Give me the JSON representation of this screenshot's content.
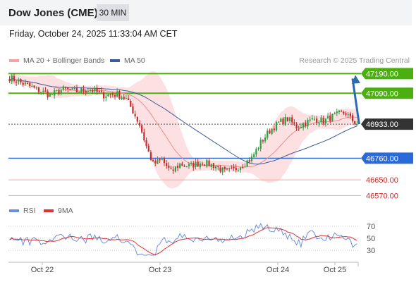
{
  "header": {
    "title": "Dow Jones (CME)",
    "timeframe": "30 MIN",
    "datetime": "Friday, October 24, 2025 11:33:04 AM CET"
  },
  "legend": {
    "bollinger_label": "MA 20 + Bollinger Bands",
    "ma50_label": "MA 50",
    "credit": "Research © 2025 Trading Central",
    "rsi_label": "RSI",
    "rsi_ma_label": "9MA"
  },
  "colors": {
    "up": "#2f9e44",
    "down": "#c92a2a",
    "bands": "#fcd5d8",
    "ma20": "#f08c8c",
    "ma50": "#3b5b9c",
    "resistance": "#4caf10",
    "support": "#2a6ad8",
    "target_line": "#f4a3a3",
    "rsi": "#6b8fe0",
    "rsi_ma": "#e03131",
    "arrow": "#2b6cb0"
  },
  "chart_data": [
    {
      "type": "candlestick",
      "x_ticks": [
        "Oct 22",
        "Oct 23",
        "Oct 24",
        "Oct 25"
      ],
      "ylim": [
        46550,
        47220
      ],
      "levels": [
        {
          "value": 47190.0,
          "label": "47190.00",
          "kind": "resistance"
        },
        {
          "value": 47090.0,
          "label": "47090.00",
          "kind": "resistance"
        },
        {
          "value": 46933.0,
          "label": "46933.00",
          "kind": "last"
        },
        {
          "value": 46760.0,
          "label": "46760.00",
          "kind": "pivot"
        },
        {
          "value": 46650.0,
          "label": "46650.00",
          "kind": "support"
        },
        {
          "value": 46570.0,
          "label": "46570.00",
          "kind": "support"
        }
      ],
      "close_path": [
        [
          0,
          47170
        ],
        [
          6,
          47140
        ],
        [
          12,
          47110
        ],
        [
          18,
          47080
        ],
        [
          24,
          47110
        ],
        [
          30,
          47100
        ],
        [
          36,
          47110
        ],
        [
          42,
          47080
        ],
        [
          48,
          47085
        ],
        [
          52,
          47060
        ],
        [
          55,
          47000
        ],
        [
          58,
          46930
        ],
        [
          61,
          46820
        ],
        [
          64,
          46730
        ],
        [
          68,
          46750
        ],
        [
          72,
          46690
        ],
        [
          76,
          46730
        ],
        [
          80,
          46720
        ],
        [
          86,
          46740
        ],
        [
          92,
          46720
        ],
        [
          96,
          46690
        ],
        [
          100,
          46700
        ],
        [
          104,
          46730
        ],
        [
          108,
          46760
        ],
        [
          112,
          46840
        ],
        [
          116,
          46900
        ],
        [
          120,
          46940
        ],
        [
          124,
          46960
        ],
        [
          128,
          46920
        ],
        [
          132,
          46940
        ],
        [
          136,
          46960
        ],
        [
          140,
          46950
        ],
        [
          144,
          46970
        ],
        [
          148,
          46990
        ],
        [
          150,
          46990
        ],
        [
          152,
          46960
        ],
        [
          155,
          46933
        ]
      ],
      "n_candles": 156
    },
    {
      "type": "line",
      "name": "RSI panel",
      "y_ticks": [
        70,
        50,
        30
      ],
      "ylim": [
        15,
        85
      ]
    }
  ]
}
